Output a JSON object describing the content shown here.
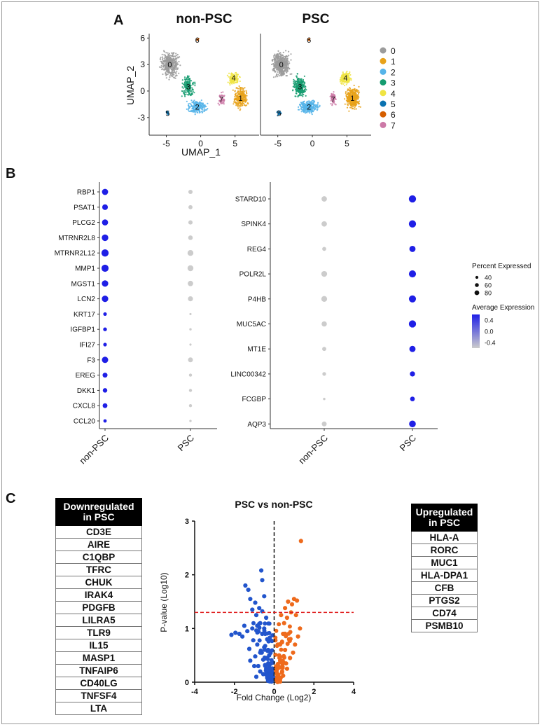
{
  "colors": {
    "clusters": [
      "#9b9b9b",
      "#e8a21a",
      "#56b4e9",
      "#159c70",
      "#f0e442",
      "#0a72b0",
      "#d55e00",
      "#cc79a7"
    ],
    "dot_high": "#1f1fe6",
    "dot_low": "#cccccc",
    "volcano_down": "#2255cc",
    "volcano_up": "#ee6a1c",
    "threshold": "#e02020"
  },
  "panel_labels": {
    "a": "A",
    "b": "B",
    "c": "C"
  },
  "panel_a": {
    "titles": [
      "non-PSC",
      "PSC"
    ],
    "xlabel": "UMAP_1",
    "ylabel": "UMAP_2",
    "xticks": [
      "-5",
      "0",
      "5"
    ],
    "yticks": [
      "6",
      "3",
      "0",
      "-3"
    ],
    "legend": [
      "0",
      "1",
      "2",
      "3",
      "4",
      "5",
      "6",
      "7"
    ],
    "cluster_labels": [
      "0",
      "1",
      "2",
      "3",
      "4",
      "5",
      "6",
      "7"
    ]
  },
  "panel_c": {
    "down_header": "Downregulated in PSC",
    "down_genes": [
      "CD3E",
      "AIRE",
      "C1QBP",
      "TFRC",
      "CHUK",
      "IRAK4",
      "PDGFB",
      "LILRA5",
      "TLR9",
      "IL15",
      "MASP1",
      "TNFAIP6",
      "CD40LG",
      "TNFSF4",
      "LTA"
    ],
    "up_header": "Upregulated in PSC",
    "up_genes": [
      "HLA-A",
      "RORC",
      "MUC1",
      "HLA-DPA1",
      "CFB",
      "PTGS2",
      "CD74",
      "PSMB10"
    ]
  },
  "chart_data": [
    {
      "type": "scatter",
      "description": "UMAP of cell clusters",
      "panels": [
        "non-PSC",
        "PSC"
      ],
      "xlabel": "UMAP_1",
      "ylabel": "UMAP_2",
      "xlim": [
        -7.5,
        8.5
      ],
      "ylim": [
        -5,
        6.5
      ],
      "legend_placement": "right",
      "clusters": [
        {
          "name": "0",
          "center": [
            -4.5,
            3.0
          ]
        },
        {
          "name": "1",
          "center": [
            5.8,
            -0.8
          ]
        },
        {
          "name": "2",
          "center": [
            -0.5,
            -1.8
          ]
        },
        {
          "name": "3",
          "center": [
            -1.8,
            0.5
          ]
        },
        {
          "name": "4",
          "center": [
            4.8,
            1.5
          ]
        },
        {
          "name": "5",
          "center": [
            -4.8,
            -2.5
          ]
        },
        {
          "name": "6",
          "center": [
            -0.5,
            5.8
          ]
        },
        {
          "name": "7",
          "center": [
            3.0,
            -0.9
          ]
        }
      ]
    },
    {
      "type": "scatter",
      "description": "dot plot",
      "groups": [
        "non-PSC",
        "PSC"
      ],
      "genes": [
        "RBP1",
        "PSAT1",
        "PLCG2",
        "MTRNR2L8",
        "MTRNR2L12",
        "MMP1",
        "MGST1",
        "LCN2",
        "KRT17",
        "IGFBP1",
        "IFI27",
        "F3",
        "EREG",
        "DKK1",
        "CXCL8",
        "CCL20"
      ],
      "percent_expressed": [
        [
          70,
          40
        ],
        [
          62,
          38
        ],
        [
          68,
          40
        ],
        [
          76,
          45
        ],
        [
          86,
          65
        ],
        [
          84,
          65
        ],
        [
          74,
          58
        ],
        [
          74,
          52
        ],
        [
          30,
          8
        ],
        [
          32,
          10
        ],
        [
          30,
          8
        ],
        [
          72,
          50
        ],
        [
          50,
          22
        ],
        [
          44,
          22
        ],
        [
          48,
          22
        ],
        [
          26,
          10
        ]
      ],
      "average_expression": [
        [
          0.6,
          -0.6
        ],
        [
          0.6,
          -0.6
        ],
        [
          0.6,
          -0.6
        ],
        [
          0.6,
          -0.6
        ],
        [
          0.6,
          -0.6
        ],
        [
          0.6,
          -0.6
        ],
        [
          0.6,
          -0.6
        ],
        [
          0.6,
          -0.6
        ],
        [
          0.6,
          -0.6
        ],
        [
          0.6,
          -0.6
        ],
        [
          0.6,
          -0.6
        ],
        [
          0.6,
          -0.6
        ],
        [
          0.6,
          -0.6
        ],
        [
          0.6,
          -0.6
        ],
        [
          0.6,
          -0.6
        ],
        [
          0.6,
          -0.6
        ]
      ]
    },
    {
      "type": "scatter",
      "description": "dot plot",
      "groups": [
        "non-PSC",
        "PSC"
      ],
      "genes": [
        "STARD10",
        "SPINK4",
        "REG4",
        "POLR2L",
        "P4HB",
        "MUC5AC",
        "MT1E",
        "LINC00342",
        "FCGBP",
        "AQP3"
      ],
      "percent_expressed": [
        [
          58,
          86
        ],
        [
          58,
          86
        ],
        [
          36,
          70
        ],
        [
          64,
          84
        ],
        [
          64,
          84
        ],
        [
          56,
          86
        ],
        [
          38,
          70
        ],
        [
          32,
          54
        ],
        [
          12,
          46
        ],
        [
          50,
          78
        ]
      ],
      "average_expression": [
        [
          -0.6,
          0.6
        ],
        [
          -0.6,
          0.6
        ],
        [
          -0.6,
          0.6
        ],
        [
          -0.6,
          0.6
        ],
        [
          -0.6,
          0.6
        ],
        [
          -0.6,
          0.6
        ],
        [
          -0.6,
          0.6
        ],
        [
          -0.6,
          0.6
        ],
        [
          -0.6,
          0.6
        ],
        [
          -0.6,
          0.6
        ]
      ],
      "legend": {
        "size_title": "Percent Expressed",
        "size_values": [
          "40",
          "60",
          "80"
        ],
        "color_title": "Average Expression",
        "color_ticks": [
          "0.4",
          "0.0",
          "-0.4"
        ]
      }
    },
    {
      "type": "scatter",
      "title": "PSC vs non-PSC",
      "xlabel": "Fold Change (Log2)",
      "ylabel": "P-value (Log10)",
      "xlim": [
        -4,
        4
      ],
      "ylim": [
        0,
        3
      ],
      "xticks": [
        "-4",
        "-2",
        "0",
        "2",
        "4"
      ],
      "yticks": [
        "0",
        "1",
        "2",
        "3"
      ],
      "significance_threshold": 1.3,
      "series": [
        {
          "name": "Downregulated",
          "points": [
            [
              -2.15,
              0.88
            ],
            [
              -1.95,
              0.92
            ],
            [
              -1.75,
              0.9
            ],
            [
              -1.6,
              0.85
            ],
            [
              -1.5,
              1.05
            ],
            [
              -1.45,
              1.8
            ],
            [
              -1.3,
              1.72
            ],
            [
              -1.2,
              1.55
            ],
            [
              -1.1,
              1.35
            ],
            [
              -1.1,
              1.0
            ],
            [
              -1.05,
              0.78
            ],
            [
              -0.95,
              1.48
            ],
            [
              -0.9,
              1.25
            ],
            [
              -0.85,
              0.7
            ],
            [
              -0.75,
              1.38
            ],
            [
              -0.7,
              1.1
            ],
            [
              -0.7,
              0.55
            ],
            [
              -0.65,
              2.08
            ],
            [
              -0.6,
              1.9
            ],
            [
              -0.6,
              0.9
            ],
            [
              -0.55,
              0.42
            ],
            [
              -0.5,
              1.6
            ],
            [
              -0.5,
              0.65
            ],
            [
              -0.45,
              0.32
            ],
            [
              -0.4,
              1.2
            ],
            [
              -0.4,
              0.25
            ],
            [
              -0.35,
              0.8
            ],
            [
              -0.3,
              0.18
            ],
            [
              -0.25,
              0.5
            ],
            [
              -0.2,
              0.1
            ],
            [
              -0.15,
              0.35
            ],
            [
              -0.1,
              0.05
            ],
            [
              -1.35,
              0.95
            ],
            [
              -1.25,
              0.62
            ],
            [
              -0.95,
              0.48
            ],
            [
              -0.8,
              0.3
            ],
            [
              -0.55,
              0.15
            ],
            [
              -0.35,
              0.08
            ],
            [
              -0.6,
              1.32
            ],
            [
              -1.0,
              0.3
            ],
            [
              -1.2,
              0.4
            ],
            [
              -0.85,
              1.05
            ],
            [
              -0.3,
              0.6
            ],
            [
              -0.25,
              0.3
            ],
            [
              -0.45,
              0.9
            ],
            [
              -0.7,
              0.2
            ],
            [
              -0.9,
              0.1
            ],
            [
              -0.5,
              1.0
            ]
          ]
        },
        {
          "name": "Upregulated",
          "points": [
            [
              1.35,
              2.63
            ],
            [
              1.15,
              1.52
            ],
            [
              1.0,
              1.55
            ],
            [
              0.9,
              1.45
            ],
            [
              0.85,
              1.3
            ],
            [
              0.7,
              1.5
            ],
            [
              0.65,
              1.2
            ],
            [
              0.55,
              1.38
            ],
            [
              0.5,
              1.1
            ],
            [
              0.45,
              0.9
            ],
            [
              0.35,
              1.25
            ],
            [
              0.3,
              0.7
            ],
            [
              0.25,
              0.5
            ],
            [
              0.2,
              0.3
            ],
            [
              0.15,
              0.15
            ],
            [
              0.1,
              0.05
            ],
            [
              1.3,
              1.0
            ],
            [
              1.2,
              0.85
            ],
            [
              1.05,
              0.7
            ],
            [
              0.95,
              0.55
            ],
            [
              0.8,
              0.45
            ],
            [
              0.6,
              0.35
            ],
            [
              0.4,
              0.2
            ],
            [
              0.75,
              0.8
            ],
            [
              1.1,
              1.25
            ],
            [
              0.55,
              0.6
            ],
            [
              0.3,
              0.4
            ],
            [
              0.2,
              0.1
            ],
            [
              0.45,
              0.12
            ],
            [
              0.65,
              0.25
            ]
          ]
        }
      ]
    }
  ]
}
